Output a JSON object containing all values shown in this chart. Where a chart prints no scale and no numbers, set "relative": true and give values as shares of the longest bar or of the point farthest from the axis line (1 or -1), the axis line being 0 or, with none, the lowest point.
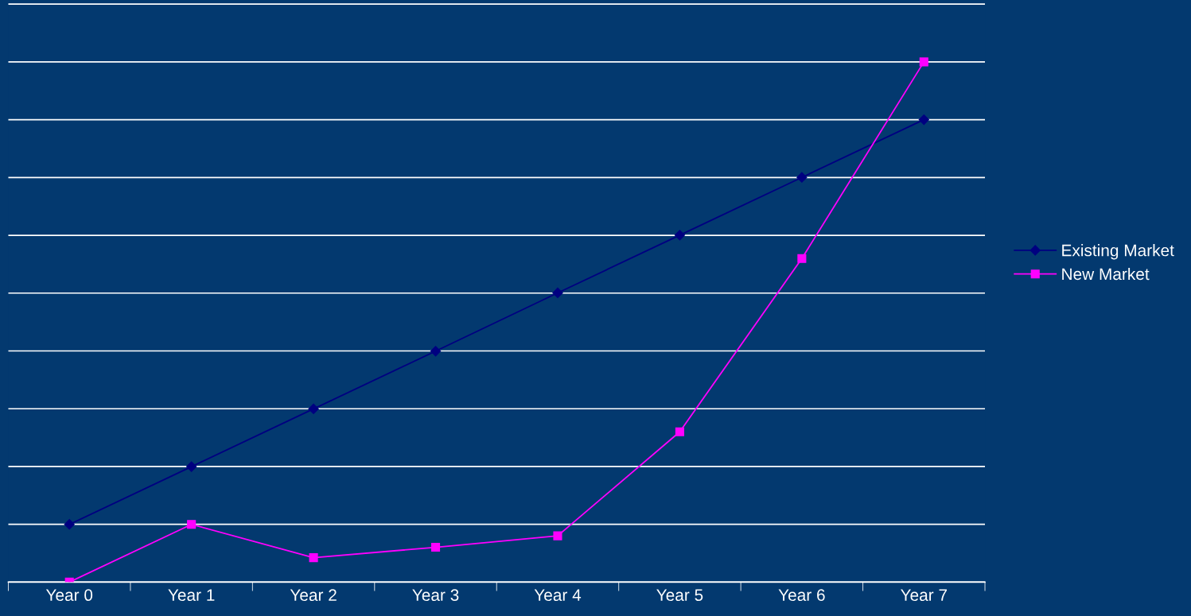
{
  "chart_data": {
    "type": "line",
    "relative": true,
    "categories": [
      "Year 0",
      "Year 1",
      "Year 2",
      "Year 3",
      "Year 4",
      "Year 5",
      "Year 6",
      "Year 7"
    ],
    "series": [
      {
        "name": "Existing Market",
        "color": "#000080",
        "marker": "diamond",
        "values": [
          0.111,
          0.222,
          0.333,
          0.444,
          0.556,
          0.667,
          0.778,
          0.889
        ]
      },
      {
        "name": "New Market",
        "color": "#ff00ff",
        "marker": "square",
        "values": [
          0,
          0.111,
          0.047,
          0.067,
          0.089,
          0.289,
          0.622,
          1
        ]
      }
    ],
    "grid": "y",
    "legend": "right"
  }
}
